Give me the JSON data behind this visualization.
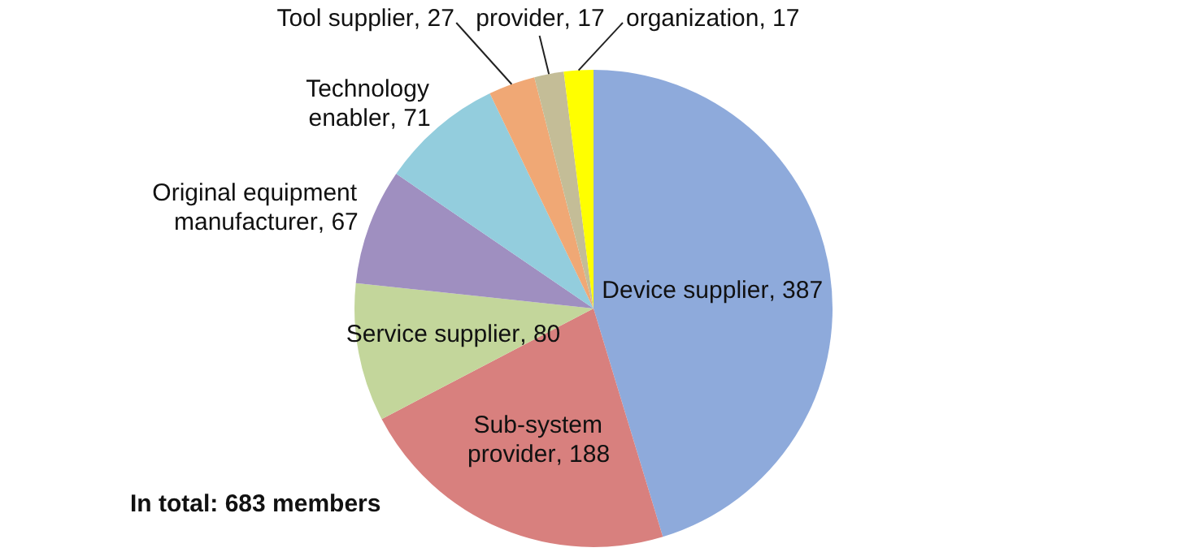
{
  "chart_data": {
    "type": "pie",
    "categories": [
      "Device supplier",
      "Sub-system provider",
      "Service supplier",
      "Original equipment manufacturer",
      "Technology enabler",
      "Tool supplier",
      "provider",
      "organization"
    ],
    "values": [
      387,
      188,
      80,
      67,
      71,
      27,
      17,
      17
    ],
    "colors": [
      "#8eaadb",
      "#d8807e",
      "#c3d69b",
      "#9f8fc0",
      "#93cddd",
      "#f0a875",
      "#c4bd97",
      "#ffff00"
    ],
    "value_labels": [
      ", 387",
      ", 188",
      ", 80",
      ", 67",
      ", 71",
      ", 27",
      ", 17",
      ", 17"
    ],
    "legend": false,
    "annotations": [
      "In total: 683 members"
    ]
  }
}
